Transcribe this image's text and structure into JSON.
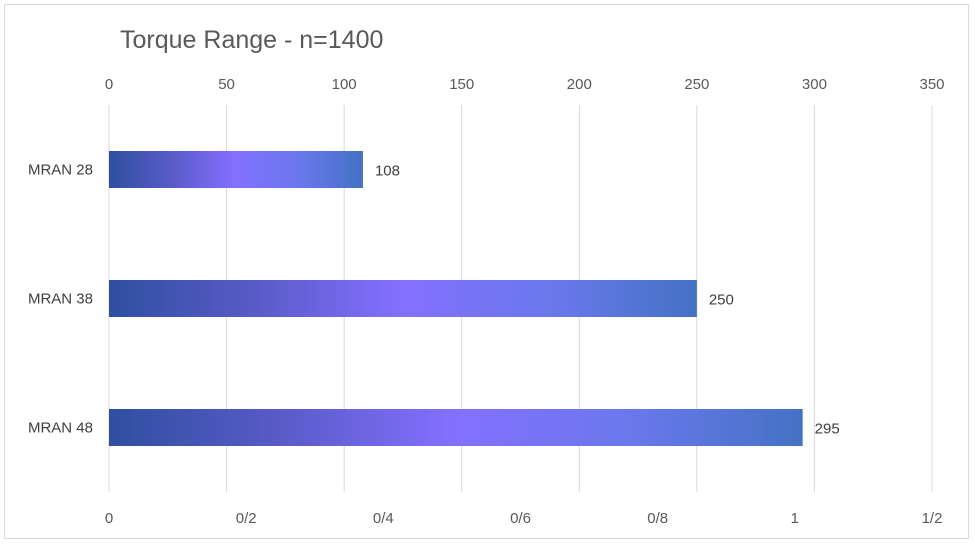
{
  "chart_data": {
    "type": "bar",
    "orientation": "horizontal",
    "title": "Torque Range - n=1400",
    "categories": [
      "MRAN 28",
      "MRAN 38",
      "MRAN 48"
    ],
    "values": [
      108,
      250,
      295
    ],
    "data_labels": [
      "108",
      "250",
      "295"
    ],
    "xlim": [
      0,
      350
    ],
    "x_ticks_top": [
      "0",
      "50",
      "100",
      "150",
      "200",
      "250",
      "300",
      "350"
    ],
    "x_ticks_bottom": [
      "0",
      "0/2",
      "0/4",
      "0/6",
      "0/8",
      "1",
      "1/2"
    ],
    "grid": true,
    "legend": "none",
    "colors": {
      "gradient": [
        "#2f4fa0",
        "#7b68ee",
        "#8470ff",
        "#6c7ff0",
        "#4472c4"
      ],
      "gridline": "#d9d9d9",
      "text": "#595959"
    }
  }
}
